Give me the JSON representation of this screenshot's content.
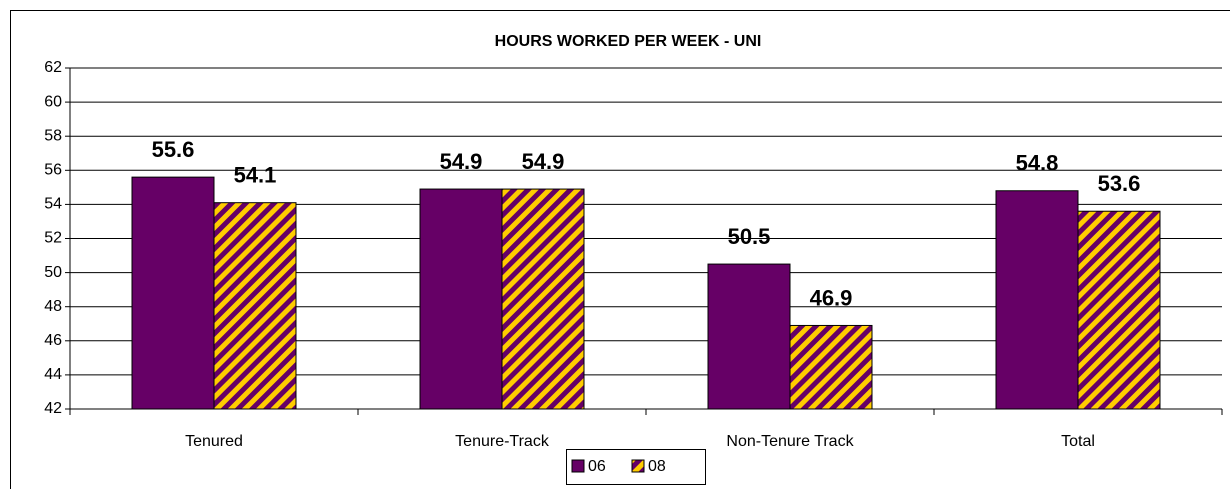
{
  "chart_data": {
    "type": "bar",
    "title": "HOURS WORKED PER WEEK - UNI",
    "categories": [
      "Tenured",
      "Tenure-Track",
      "Non-Tenure Track",
      "Total"
    ],
    "series": [
      {
        "name": "06",
        "color": "#660066",
        "values": [
          55.6,
          54.9,
          50.5,
          54.8
        ]
      },
      {
        "name": "08",
        "color": "#ffcc00",
        "values": [
          54.1,
          54.9,
          46.9,
          53.6
        ]
      }
    ],
    "ylim": [
      42,
      62
    ],
    "yticks": [
      42,
      44,
      46,
      48,
      50,
      52,
      54,
      56,
      58,
      60,
      62
    ],
    "grid": true,
    "legend": "bottom"
  }
}
